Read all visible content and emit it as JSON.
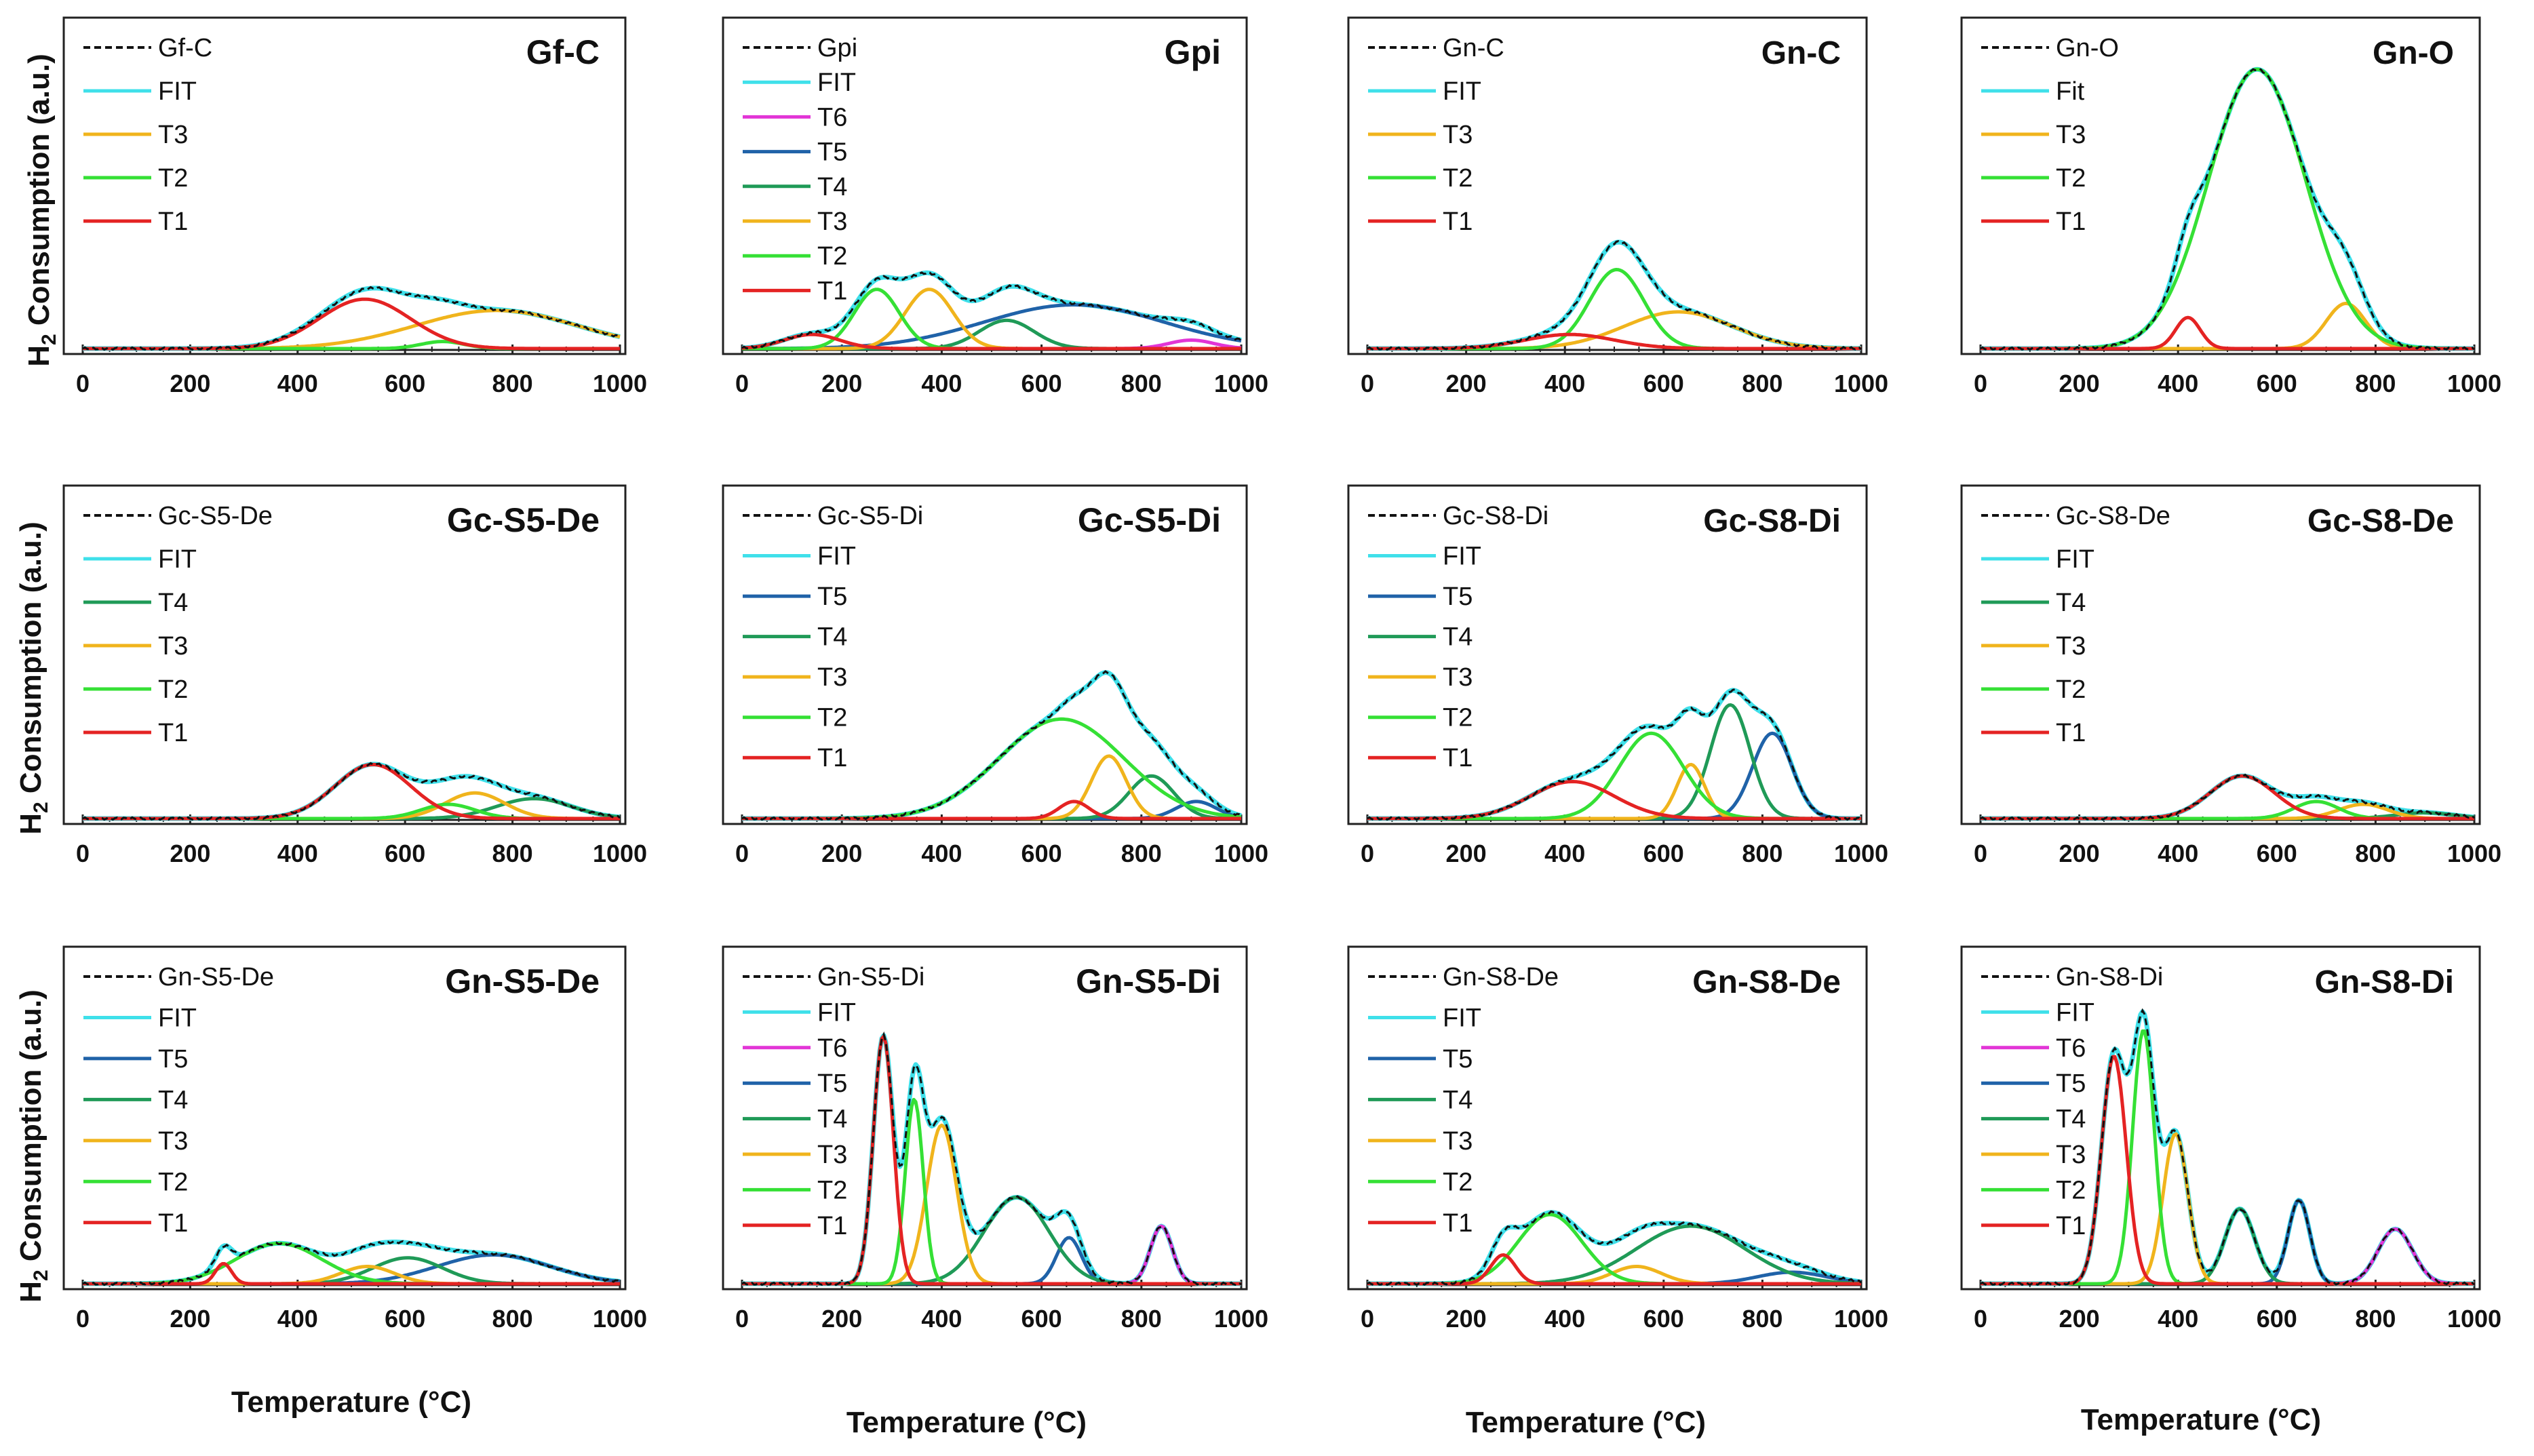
{
  "figure": {
    "ylabel_prefix": "H",
    "ylabel_sub": "2",
    "ylabel_rest": " Consumption (a.u.)",
    "xlabel": "Temperature (°C)"
  },
  "colors": {
    "FIT": "#3fe0ea",
    "T1": "#e42323",
    "T2": "#35e035",
    "T3": "#f0b41c",
    "T4": "#1f9a57",
    "T5": "#1f62a8",
    "T6": "#e235d6",
    "data": "#111111"
  },
  "chart_data": [
    {
      "type": "line",
      "title": "Gf-C",
      "xlim": [
        0,
        1000
      ],
      "ylim": [
        0,
        1
      ],
      "xticks": [
        0,
        200,
        400,
        600,
        800,
        1000
      ],
      "xlabel": "",
      "ylabel": "H2 Consumption (a.u.)",
      "legend": [
        "Gf-C",
        "FIT",
        "T3",
        "T2",
        "T1"
      ],
      "series": [
        {
          "name": "T3",
          "peaks": [
            {
              "c": 770,
              "a": 0.135,
              "w": 150
            }
          ]
        },
        {
          "name": "T2",
          "peaks": [
            {
              "c": 670,
              "a": 0.025,
              "w": 40
            }
          ]
        },
        {
          "name": "T1",
          "peaks": [
            {
              "c": 525,
              "a": 0.175,
              "w": 85
            }
          ]
        }
      ]
    },
    {
      "type": "line",
      "title": "Gpi",
      "xlim": [
        0,
        1000
      ],
      "ylim": [
        0,
        1
      ],
      "xticks": [
        0,
        200,
        400,
        600,
        800,
        1000
      ],
      "xlabel": "",
      "ylabel": "",
      "legend": [
        "Gpi",
        "FIT",
        "T6",
        "T5",
        "T4",
        "T3",
        "T2",
        "T1"
      ],
      "series": [
        {
          "name": "T6",
          "peaks": [
            {
              "c": 900,
              "a": 0.03,
              "w": 45
            }
          ]
        },
        {
          "name": "T5",
          "peaks": [
            {
              "c": 665,
              "a": 0.155,
              "w": 180
            }
          ]
        },
        {
          "name": "T4",
          "peaks": [
            {
              "c": 530,
              "a": 0.1,
              "w": 55
            }
          ]
        },
        {
          "name": "T3",
          "peaks": [
            {
              "c": 375,
              "a": 0.21,
              "w": 48
            }
          ]
        },
        {
          "name": "T2",
          "peaks": [
            {
              "c": 270,
              "a": 0.21,
              "w": 45
            }
          ]
        },
        {
          "name": "T1",
          "peaks": [
            {
              "c": 140,
              "a": 0.05,
              "w": 55
            }
          ]
        }
      ]
    },
    {
      "type": "line",
      "title": "Gn-C",
      "xlim": [
        0,
        1000
      ],
      "ylim": [
        0,
        1
      ],
      "xticks": [
        0,
        200,
        400,
        600,
        800,
        1000
      ],
      "xlabel": "",
      "ylabel": "",
      "legend": [
        "Gn-C",
        "FIT",
        "T3",
        "T2",
        "T1"
      ],
      "series": [
        {
          "name": "T3",
          "peaks": [
            {
              "c": 630,
              "a": 0.13,
              "w": 110
            }
          ]
        },
        {
          "name": "T2",
          "peaks": [
            {
              "c": 505,
              "a": 0.28,
              "w": 55
            }
          ]
        },
        {
          "name": "T1",
          "peaks": [
            {
              "c": 410,
              "a": 0.05,
              "w": 90
            }
          ]
        }
      ]
    },
    {
      "type": "line",
      "title": "Gn-O",
      "xlim": [
        0,
        1000
      ],
      "ylim": [
        0,
        1
      ],
      "xticks": [
        0,
        200,
        400,
        600,
        800,
        1000
      ],
      "xlabel": "",
      "ylabel": "",
      "legend": [
        "Gn-O",
        "Fit",
        "T3",
        "T2",
        "T1"
      ],
      "series": [
        {
          "name": "T3",
          "peaks": [
            {
              "c": 740,
              "a": 0.16,
              "w": 40
            }
          ]
        },
        {
          "name": "T2",
          "peaks": [
            {
              "c": 560,
              "a": 0.99,
              "w": 98
            }
          ]
        },
        {
          "name": "T1",
          "peaks": [
            {
              "c": 420,
              "a": 0.11,
              "w": 25
            }
          ]
        }
      ]
    },
    {
      "type": "line",
      "title": "Gc-S5-De",
      "xlim": [
        0,
        1000
      ],
      "ylim": [
        0,
        1
      ],
      "xticks": [
        0,
        200,
        400,
        600,
        800,
        1000
      ],
      "xlabel": "",
      "ylabel": "H2 Consumption (a.u.)",
      "legend": [
        "Gc-S5-De",
        "FIT",
        "T4",
        "T3",
        "T2",
        "T1"
      ],
      "series": [
        {
          "name": "T4",
          "peaks": [
            {
              "c": 840,
              "a": 0.07,
              "w": 70
            }
          ]
        },
        {
          "name": "T3",
          "peaks": [
            {
              "c": 730,
              "a": 0.09,
              "w": 55
            }
          ]
        },
        {
          "name": "T2",
          "peaks": [
            {
              "c": 680,
              "a": 0.05,
              "w": 50
            }
          ]
        },
        {
          "name": "T1",
          "peaks": [
            {
              "c": 540,
              "a": 0.19,
              "w": 70
            }
          ]
        }
      ]
    },
    {
      "type": "line",
      "title": "Gc-S5-Di",
      "xlim": [
        0,
        1000
      ],
      "ylim": [
        0,
        1
      ],
      "xticks": [
        0,
        200,
        400,
        600,
        800,
        1000
      ],
      "xlabel": "",
      "ylabel": "",
      "legend": [
        "Gc-S5-Di",
        "FIT",
        "T5",
        "T4",
        "T3",
        "T2",
        "T1"
      ],
      "series": [
        {
          "name": "T5",
          "peaks": [
            {
              "c": 910,
              "a": 0.06,
              "w": 40
            }
          ]
        },
        {
          "name": "T4",
          "peaks": [
            {
              "c": 820,
              "a": 0.15,
              "w": 45
            }
          ]
        },
        {
          "name": "T3",
          "peaks": [
            {
              "c": 735,
              "a": 0.22,
              "w": 35
            }
          ]
        },
        {
          "name": "T2",
          "peaks": [
            {
              "c": 640,
              "a": 0.35,
              "w": 125
            }
          ]
        },
        {
          "name": "T1",
          "peaks": [
            {
              "c": 665,
              "a": 0.06,
              "w": 30
            }
          ]
        }
      ]
    },
    {
      "type": "line",
      "title": "Gc-S8-Di",
      "xlim": [
        0,
        1000
      ],
      "ylim": [
        0,
        1
      ],
      "xticks": [
        0,
        200,
        400,
        600,
        800,
        1000
      ],
      "xlabel": "",
      "ylabel": "",
      "legend": [
        "Gc-S8-Di",
        "FIT",
        "T5",
        "T4",
        "T3",
        "T2",
        "T1"
      ],
      "series": [
        {
          "name": "T5",
          "peaks": [
            {
              "c": 820,
              "a": 0.3,
              "w": 40
            }
          ]
        },
        {
          "name": "T4",
          "peaks": [
            {
              "c": 735,
              "a": 0.4,
              "w": 40
            }
          ]
        },
        {
          "name": "T3",
          "peaks": [
            {
              "c": 655,
              "a": 0.19,
              "w": 28
            }
          ]
        },
        {
          "name": "T2",
          "peaks": [
            {
              "c": 575,
              "a": 0.3,
              "w": 65
            }
          ]
        },
        {
          "name": "T1",
          "peaks": [
            {
              "c": 415,
              "a": 0.13,
              "w": 85
            }
          ]
        }
      ]
    },
    {
      "type": "line",
      "title": "Gc-S8-De",
      "xlim": [
        0,
        1000
      ],
      "ylim": [
        0,
        1
      ],
      "xticks": [
        0,
        200,
        400,
        600,
        800,
        1000
      ],
      "xlabel": "",
      "ylabel": "",
      "legend": [
        "Gc-S8-De",
        "FIT",
        "T4",
        "T3",
        "T2",
        "T1"
      ],
      "series": [
        {
          "name": "T4",
          "peaks": [
            {
              "c": 900,
              "a": 0.02,
              "w": 60
            }
          ]
        },
        {
          "name": "T3",
          "peaks": [
            {
              "c": 775,
              "a": 0.05,
              "w": 50
            }
          ]
        },
        {
          "name": "T2",
          "peaks": [
            {
              "c": 680,
              "a": 0.06,
              "w": 45
            }
          ]
        },
        {
          "name": "T1",
          "peaks": [
            {
              "c": 530,
              "a": 0.15,
              "w": 65
            }
          ]
        }
      ]
    },
    {
      "type": "line",
      "title": "Gn-S5-De",
      "xlim": [
        0,
        1000
      ],
      "ylim": [
        0,
        1
      ],
      "xticks": [
        0,
        200,
        400,
        600,
        800,
        1000
      ],
      "xlabel": "Temperature (°C)",
      "ylabel": "H2 Consumption (a.u.)",
      "legend": [
        "Gn-S5-De",
        "FIT",
        "T5",
        "T4",
        "T3",
        "T2",
        "T1"
      ],
      "series": [
        {
          "name": "T5",
          "peaks": [
            {
              "c": 765,
              "a": 0.1,
              "w": 105
            }
          ]
        },
        {
          "name": "T4",
          "peaks": [
            {
              "c": 605,
              "a": 0.09,
              "w": 65
            }
          ]
        },
        {
          "name": "T3",
          "peaks": [
            {
              "c": 530,
              "a": 0.06,
              "w": 50
            }
          ]
        },
        {
          "name": "T2",
          "peaks": [
            {
              "c": 365,
              "a": 0.14,
              "w": 80
            }
          ]
        },
        {
          "name": "T1",
          "peaks": [
            {
              "c": 262,
              "a": 0.07,
              "w": 15
            }
          ]
        }
      ]
    },
    {
      "type": "line",
      "title": "Gn-S5-Di",
      "xlim": [
        0,
        1000
      ],
      "ylim": [
        0,
        1
      ],
      "xticks": [
        0,
        200,
        400,
        600,
        800,
        1000
      ],
      "xlabel": "Temperature (°C)",
      "ylabel": "",
      "legend": [
        "Gn-S5-Di",
        "FIT",
        "T6",
        "T5",
        "T4",
        "T3",
        "T2",
        "T1"
      ],
      "series": [
        {
          "name": "T6",
          "peaks": [
            {
              "c": 840,
              "a": 0.2,
              "w": 22
            }
          ]
        },
        {
          "name": "T5",
          "peaks": [
            {
              "c": 655,
              "a": 0.16,
              "w": 25
            }
          ]
        },
        {
          "name": "T4",
          "peaks": [
            {
              "c": 550,
              "a": 0.3,
              "w": 65
            }
          ]
        },
        {
          "name": "T3",
          "peaks": [
            {
              "c": 400,
              "a": 0.55,
              "w": 30
            }
          ]
        },
        {
          "name": "T2",
          "peaks": [
            {
              "c": 345,
              "a": 0.64,
              "w": 18
            }
          ]
        },
        {
          "name": "T1",
          "peaks": [
            {
              "c": 283,
              "a": 0.86,
              "w": 20
            }
          ]
        }
      ]
    },
    {
      "type": "line",
      "title": "Gn-S8-De",
      "xlim": [
        0,
        1000
      ],
      "ylim": [
        0,
        1
      ],
      "xticks": [
        0,
        200,
        400,
        600,
        800,
        1000
      ],
      "xlabel": "Temperature (°C)",
      "ylabel": "",
      "legend": [
        "Gn-S8-De",
        "FIT",
        "T5",
        "T4",
        "T3",
        "T2",
        "T1"
      ],
      "series": [
        {
          "name": "T5",
          "peaks": [
            {
              "c": 860,
              "a": 0.04,
              "w": 70
            }
          ]
        },
        {
          "name": "T4",
          "peaks": [
            {
              "c": 655,
              "a": 0.2,
              "w": 110
            }
          ]
        },
        {
          "name": "T3",
          "peaks": [
            {
              "c": 545,
              "a": 0.06,
              "w": 50
            }
          ]
        },
        {
          "name": "T2",
          "peaks": [
            {
              "c": 370,
              "a": 0.24,
              "w": 65
            }
          ]
        },
        {
          "name": "T1",
          "peaks": [
            {
              "c": 275,
              "a": 0.1,
              "w": 25
            }
          ]
        }
      ]
    },
    {
      "type": "line",
      "title": "Gn-S8-Di",
      "xlim": [
        0,
        1000
      ],
      "ylim": [
        0,
        1
      ],
      "xticks": [
        0,
        200,
        400,
        600,
        800,
        1000
      ],
      "xlabel": "Temperature (°C)",
      "ylabel": "",
      "legend": [
        "Gn-S8-Di",
        "FIT",
        "T6",
        "T5",
        "T4",
        "T3",
        "T2",
        "T1"
      ],
      "series": [
        {
          "name": "T6",
          "peaks": [
            {
              "c": 840,
              "a": 0.19,
              "w": 35
            }
          ]
        },
        {
          "name": "T5",
          "peaks": [
            {
              "c": 645,
              "a": 0.29,
              "w": 22
            }
          ]
        },
        {
          "name": "T4",
          "peaks": [
            {
              "c": 525,
              "a": 0.26,
              "w": 30
            }
          ]
        },
        {
          "name": "T3",
          "peaks": [
            {
              "c": 395,
              "a": 0.52,
              "w": 25
            }
          ]
        },
        {
          "name": "T2",
          "peaks": [
            {
              "c": 330,
              "a": 0.88,
              "w": 22
            }
          ]
        },
        {
          "name": "T1",
          "peaks": [
            {
              "c": 270,
              "a": 0.79,
              "w": 25
            }
          ]
        }
      ]
    }
  ]
}
